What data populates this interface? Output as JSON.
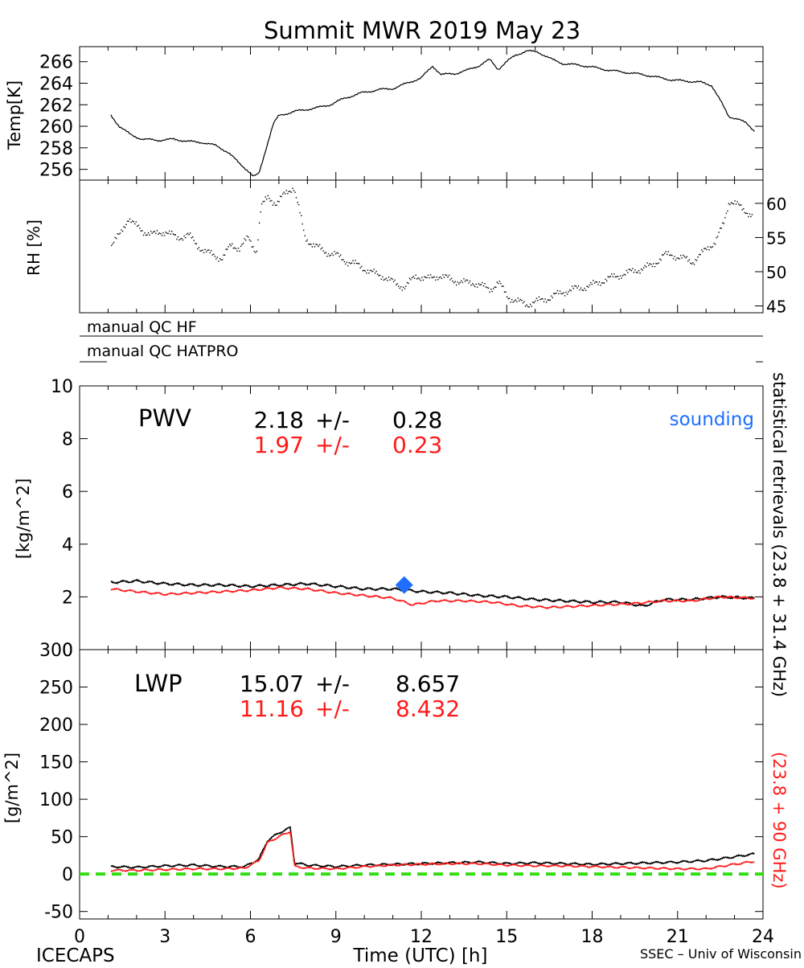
{
  "title": "Summit MWR 2019 May 23",
  "footer": {
    "left": "ICECAPS",
    "center": "Time (UTC) [h]",
    "right": "SSEC – Univ of Wisconsin"
  },
  "colors": {
    "black": "#000000",
    "red": "#ff1a1a",
    "blue": "#1f6fff",
    "green": "#33dd11"
  },
  "right_legend": {
    "black_label": "statistical retrievals (23.8 + 31.4 GHz)",
    "red_label": "(23.8 + 90 GHz)"
  },
  "chart_data": [
    {
      "id": "temp",
      "type": "line",
      "ylabel": "Temp[K]",
      "ylim": [
        255,
        267.4
      ],
      "yticks": [
        256,
        258,
        260,
        262,
        264,
        266
      ],
      "xlim": [
        0,
        24
      ],
      "series": [
        {
          "color": "black",
          "points": [
            [
              1.1,
              261.0
            ],
            [
              1.4,
              260.0
            ],
            [
              1.8,
              259.2
            ],
            [
              2.2,
              258.8
            ],
            [
              2.8,
              258.7
            ],
            [
              3.3,
              258.8
            ],
            [
              3.8,
              258.6
            ],
            [
              4.3,
              258.5
            ],
            [
              4.8,
              258.2
            ],
            [
              5.2,
              257.6
            ],
            [
              5.6,
              256.6
            ],
            [
              5.9,
              255.9
            ],
            [
              6.1,
              255.3
            ],
            [
              6.3,
              255.6
            ],
            [
              6.5,
              257.5
            ],
            [
              6.8,
              260.2
            ],
            [
              7.0,
              261.0
            ],
            [
              7.6,
              261.4
            ],
            [
              8.3,
              261.7
            ],
            [
              8.8,
              262.0
            ],
            [
              9.3,
              262.6
            ],
            [
              9.9,
              263.1
            ],
            [
              10.5,
              263.4
            ],
            [
              11.0,
              263.5
            ],
            [
              11.5,
              264.0
            ],
            [
              12.0,
              264.5
            ],
            [
              12.4,
              265.6
            ],
            [
              12.7,
              264.8
            ],
            [
              13.2,
              264.9
            ],
            [
              13.6,
              265.2
            ],
            [
              14.0,
              265.6
            ],
            [
              14.4,
              266.2
            ],
            [
              14.7,
              265.3
            ],
            [
              15.0,
              266.0
            ],
            [
              15.3,
              266.6
            ],
            [
              15.7,
              267.0
            ],
            [
              16.1,
              266.9
            ],
            [
              16.6,
              266.2
            ],
            [
              17.0,
              265.8
            ],
            [
              17.5,
              265.7
            ],
            [
              18.0,
              265.5
            ],
            [
              18.6,
              265.2
            ],
            [
              19.2,
              265.0
            ],
            [
              19.8,
              264.8
            ],
            [
              20.4,
              264.5
            ],
            [
              20.8,
              264.3
            ],
            [
              21.3,
              264.2
            ],
            [
              21.8,
              264.1
            ],
            [
              22.2,
              263.8
            ],
            [
              22.5,
              262.4
            ],
            [
              22.8,
              260.9
            ],
            [
              23.1,
              260.7
            ],
            [
              23.4,
              260.3
            ],
            [
              23.7,
              259.6
            ]
          ]
        }
      ]
    },
    {
      "id": "rh",
      "type": "scatter",
      "ylabel": "RH [%]",
      "ylim": [
        44,
        63.4
      ],
      "yticks": [
        45,
        50,
        55,
        60
      ],
      "xlim": [
        0,
        24
      ],
      "series": [
        {
          "color": "black",
          "points": [
            [
              1.1,
              54.0
            ],
            [
              1.4,
              55.5
            ],
            [
              1.7,
              58.0
            ],
            [
              1.9,
              57.0
            ],
            [
              2.2,
              56.0
            ],
            [
              2.6,
              55.5
            ],
            [
              3.0,
              56.0
            ],
            [
              3.4,
              55.0
            ],
            [
              3.8,
              55.5
            ],
            [
              4.1,
              54.0
            ],
            [
              4.4,
              53.0
            ],
            [
              4.7,
              52.5
            ],
            [
              5.0,
              52.0
            ],
            [
              5.3,
              54.0
            ],
            [
              5.6,
              53.5
            ],
            [
              5.9,
              55.0
            ],
            [
              6.2,
              53.0
            ],
            [
              6.35,
              59.5
            ],
            [
              6.6,
              61.0
            ],
            [
              6.9,
              60.0
            ],
            [
              7.2,
              61.5
            ],
            [
              7.5,
              62.5
            ],
            [
              7.7,
              59.0
            ],
            [
              7.9,
              55.0
            ],
            [
              8.2,
              54.0
            ],
            [
              8.6,
              53.0
            ],
            [
              9.0,
              52.5
            ],
            [
              9.4,
              51.5
            ],
            [
              9.8,
              51.0
            ],
            [
              10.2,
              50.0
            ],
            [
              10.6,
              49.5
            ],
            [
              11.0,
              48.5
            ],
            [
              11.4,
              47.8
            ],
            [
              11.8,
              49.5
            ],
            [
              12.2,
              49.0
            ],
            [
              12.6,
              49.5
            ],
            [
              13.0,
              49.0
            ],
            [
              13.4,
              48.5
            ],
            [
              13.8,
              48.5
            ],
            [
              14.1,
              48.0
            ],
            [
              14.4,
              47.5
            ],
            [
              14.7,
              48.5
            ],
            [
              15.0,
              46.5
            ],
            [
              15.3,
              45.8
            ],
            [
              15.7,
              45.3
            ],
            [
              16.1,
              45.8
            ],
            [
              16.5,
              46.3
            ],
            [
              16.9,
              47.0
            ],
            [
              17.3,
              47.5
            ],
            [
              17.7,
              47.8
            ],
            [
              18.1,
              48.3
            ],
            [
              18.5,
              49.0
            ],
            [
              18.9,
              49.5
            ],
            [
              19.3,
              50.0
            ],
            [
              19.7,
              50.5
            ],
            [
              20.1,
              51.0
            ],
            [
              20.5,
              52.5
            ],
            [
              20.8,
              52.5
            ],
            [
              21.2,
              52.0
            ],
            [
              21.5,
              51.5
            ],
            [
              21.9,
              53.0
            ],
            [
              22.3,
              54.5
            ],
            [
              22.6,
              57.0
            ],
            [
              22.8,
              60.5
            ],
            [
              23.0,
              60.2
            ],
            [
              23.3,
              59.0
            ],
            [
              23.6,
              58.5
            ]
          ]
        }
      ]
    },
    {
      "id": "qc",
      "type": "table",
      "rows": [
        {
          "label": "manual QC HF"
        },
        {
          "label": "manual QC HATPRO"
        }
      ]
    },
    {
      "id": "pwv",
      "type": "line",
      "ylabel": "[kg/m^2]",
      "ylim": [
        0,
        10
      ],
      "yticks": [
        0,
        2,
        4,
        6,
        8,
        10
      ],
      "xlim": [
        0,
        24
      ],
      "panel_label": "PWV",
      "stats": [
        {
          "color": "black",
          "mean": "2.18",
          "pm": "+/-",
          "std": "0.28"
        },
        {
          "color": "red",
          "mean": "1.97",
          "pm": "+/-",
          "std": "0.23"
        }
      ],
      "sounding_label": "sounding",
      "sounding": {
        "x": 11.4,
        "y": 2.45
      },
      "series": [
        {
          "color": "black",
          "points": [
            [
              1.1,
              2.55
            ],
            [
              2.0,
              2.6
            ],
            [
              3.0,
              2.5
            ],
            [
              4.0,
              2.45
            ],
            [
              5.0,
              2.45
            ],
            [
              6.0,
              2.4
            ],
            [
              7.0,
              2.45
            ],
            [
              8.0,
              2.5
            ],
            [
              9.0,
              2.4
            ],
            [
              10.0,
              2.3
            ],
            [
              11.0,
              2.3
            ],
            [
              12.0,
              2.2
            ],
            [
              13.0,
              2.15
            ],
            [
              14.0,
              2.05
            ],
            [
              15.0,
              2.0
            ],
            [
              16.0,
              1.9
            ],
            [
              17.0,
              1.85
            ],
            [
              18.0,
              1.8
            ],
            [
              19.0,
              1.8
            ],
            [
              19.8,
              1.65
            ],
            [
              20.5,
              1.9
            ],
            [
              21.5,
              1.9
            ],
            [
              22.5,
              2.0
            ],
            [
              23.7,
              1.95
            ]
          ]
        },
        {
          "color": "red",
          "points": [
            [
              1.1,
              2.3
            ],
            [
              2.0,
              2.2
            ],
            [
              3.0,
              2.1
            ],
            [
              4.0,
              2.15
            ],
            [
              5.0,
              2.2
            ],
            [
              6.0,
              2.25
            ],
            [
              7.0,
              2.35
            ],
            [
              8.0,
              2.3
            ],
            [
              9.0,
              2.15
            ],
            [
              10.0,
              2.05
            ],
            [
              11.0,
              1.95
            ],
            [
              11.7,
              1.7
            ],
            [
              12.5,
              1.85
            ],
            [
              13.5,
              1.85
            ],
            [
              14.5,
              1.8
            ],
            [
              15.5,
              1.65
            ],
            [
              16.5,
              1.6
            ],
            [
              17.5,
              1.65
            ],
            [
              18.5,
              1.7
            ],
            [
              19.5,
              1.75
            ],
            [
              20.5,
              1.85
            ],
            [
              21.5,
              1.85
            ],
            [
              22.5,
              2.0
            ],
            [
              23.7,
              1.95
            ]
          ]
        }
      ]
    },
    {
      "id": "lwp",
      "type": "line",
      "ylabel": "[g/m^2]",
      "ylim": [
        -60,
        300
      ],
      "yticks": [
        -50,
        0,
        50,
        100,
        150,
        200,
        250,
        300
      ],
      "xlim": [
        0,
        24
      ],
      "xticks": [
        0,
        3,
        6,
        9,
        12,
        15,
        18,
        21,
        24
      ],
      "panel_label": "LWP",
      "stats": [
        {
          "color": "black",
          "mean": "15.07",
          "pm": "+/-",
          "std": "8.657"
        },
        {
          "color": "red",
          "mean": "11.16",
          "pm": "+/-",
          "std": "8.432"
        }
      ],
      "zero_line": 0,
      "series": [
        {
          "color": "black",
          "points": [
            [
              1.1,
              10
            ],
            [
              2.0,
              9
            ],
            [
              3.0,
              11
            ],
            [
              4.0,
              12
            ],
            [
              5.0,
              10
            ],
            [
              5.8,
              10
            ],
            [
              6.3,
              20
            ],
            [
              6.6,
              45
            ],
            [
              7.0,
              55
            ],
            [
              7.4,
              62
            ],
            [
              7.55,
              15
            ],
            [
              8.0,
              12
            ],
            [
              9.0,
              10
            ],
            [
              10.0,
              12
            ],
            [
              11.0,
              13
            ],
            [
              12.0,
              14
            ],
            [
              13.0,
              15
            ],
            [
              14.0,
              16
            ],
            [
              15.0,
              14
            ],
            [
              16.0,
              15
            ],
            [
              17.0,
              14
            ],
            [
              18.0,
              13
            ],
            [
              19.0,
              14
            ],
            [
              20.0,
              15
            ],
            [
              21.0,
              16
            ],
            [
              22.0,
              18
            ],
            [
              22.8,
              22
            ],
            [
              23.7,
              27
            ]
          ]
        },
        {
          "color": "red",
          "points": [
            [
              1.1,
              5
            ],
            [
              2.0,
              5
            ],
            [
              3.0,
              6
            ],
            [
              4.0,
              7
            ],
            [
              5.0,
              7
            ],
            [
              5.8,
              8
            ],
            [
              6.3,
              18
            ],
            [
              6.6,
              42
            ],
            [
              7.0,
              50
            ],
            [
              7.4,
              57
            ],
            [
              7.55,
              10
            ],
            [
              8.0,
              8
            ],
            [
              9.0,
              7
            ],
            [
              10.0,
              10
            ],
            [
              11.0,
              12
            ],
            [
              12.0,
              13
            ],
            [
              13.0,
              14
            ],
            [
              14.0,
              14
            ],
            [
              15.0,
              12
            ],
            [
              16.0,
              11
            ],
            [
              17.0,
              11
            ],
            [
              18.0,
              10
            ],
            [
              19.0,
              9
            ],
            [
              20.0,
              8
            ],
            [
              21.0,
              7
            ],
            [
              22.0,
              7
            ],
            [
              22.8,
              12
            ],
            [
              23.7,
              17
            ]
          ]
        }
      ]
    }
  ]
}
